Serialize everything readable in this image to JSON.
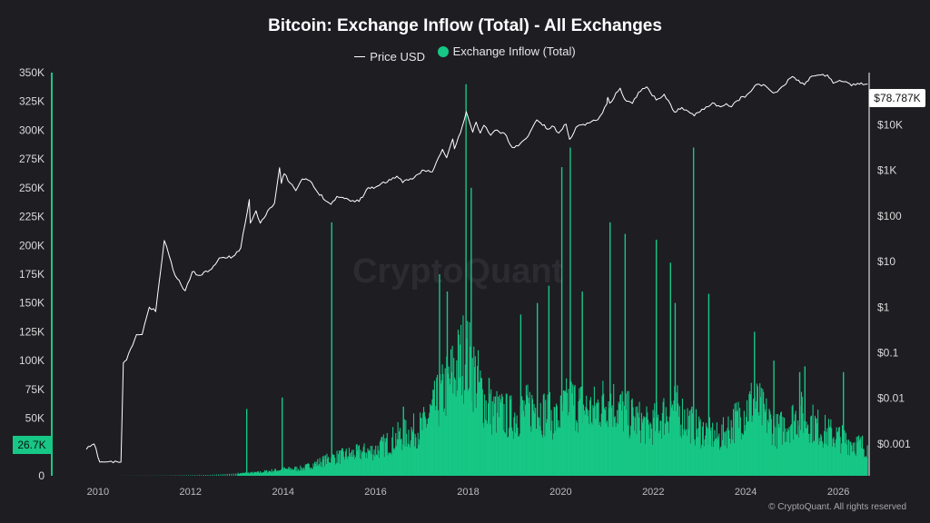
{
  "header": {
    "title": "Bitcoin: Exchange Inflow (Total) - All Exchanges",
    "legend": [
      {
        "label": "Price USD",
        "color": "#ffffff",
        "swatch": "line"
      },
      {
        "label": "Exchange Inflow (Total)",
        "color": "#17c785",
        "swatch": "dot"
      }
    ]
  },
  "watermark": "CryptoQuant",
  "footer": "© CryptoQuant. All rights reserved",
  "badges": {
    "left_current_inflow": "26.7K",
    "right_current_price": "$78.787K"
  },
  "chart_data": {
    "type": "area",
    "x_axis": {
      "ticks": [
        "2010",
        "2012",
        "2014",
        "2016",
        "2018",
        "2020",
        "2022",
        "2024",
        "2026"
      ],
      "range": [
        "2009-01-01",
        "2026-09-01"
      ]
    },
    "y_left": {
      "label": "Exchange Inflow (Total)",
      "ticks": [
        "350K",
        "325K",
        "300K",
        "275K",
        "250K",
        "225K",
        "200K",
        "175K",
        "150K",
        "125K",
        "100K",
        "75K",
        "50K",
        "25K",
        "0"
      ],
      "range": [
        0,
        350000
      ]
    },
    "y_right": {
      "label": "Price USD",
      "scale": "log",
      "ticks": [
        "$10K",
        "$1K",
        "$100",
        "$10",
        "$1",
        "$0.1",
        "$0.01",
        "$0.001"
      ],
      "range": [
        0.0002,
        140000
      ]
    },
    "series": [
      {
        "name": "Price USD",
        "axis": "right",
        "color": "#ffffff",
        "points": [
          [
            "2009-10-01",
            0.00076
          ],
          [
            "2009-12-01",
            0.001
          ],
          [
            "2010-01-15",
            0.0004
          ],
          [
            "2010-07-01",
            0.0004
          ],
          [
            "2010-07-20",
            0.06
          ],
          [
            "2010-08-15",
            0.07
          ],
          [
            "2010-11-01",
            0.25
          ],
          [
            "2010-12-15",
            0.25
          ],
          [
            "2011-02-10",
            1
          ],
          [
            "2011-04-01",
            0.8
          ],
          [
            "2011-06-08",
            29
          ],
          [
            "2011-07-15",
            14
          ],
          [
            "2011-09-01",
            5
          ],
          [
            "2011-11-20",
            2.3
          ],
          [
            "2012-01-15",
            6
          ],
          [
            "2012-03-01",
            5
          ],
          [
            "2012-06-01",
            6.5
          ],
          [
            "2012-08-15",
            12
          ],
          [
            "2012-10-01",
            12
          ],
          [
            "2012-12-01",
            13
          ],
          [
            "2013-02-01",
            20
          ],
          [
            "2013-04-09",
            230
          ],
          [
            "2013-04-17",
            70
          ],
          [
            "2013-06-01",
            130
          ],
          [
            "2013-07-05",
            70
          ],
          [
            "2013-09-01",
            130
          ],
          [
            "2013-10-25",
            190
          ],
          [
            "2013-12-04",
            1150
          ],
          [
            "2013-12-18",
            520
          ],
          [
            "2014-01-10",
            850
          ],
          [
            "2014-02-25",
            530
          ],
          [
            "2014-04-11",
            360
          ],
          [
            "2014-06-01",
            650
          ],
          [
            "2014-08-01",
            590
          ],
          [
            "2014-10-01",
            330
          ],
          [
            "2015-01-14",
            180
          ],
          [
            "2015-03-01",
            270
          ],
          [
            "2015-06-01",
            230
          ],
          [
            "2015-08-24",
            210
          ],
          [
            "2015-11-04",
            420
          ],
          [
            "2016-01-01",
            430
          ],
          [
            "2016-06-17",
            750
          ],
          [
            "2016-08-02",
            540
          ],
          [
            "2016-11-01",
            700
          ],
          [
            "2017-01-03",
            1020
          ],
          [
            "2017-03-24",
            930
          ],
          [
            "2017-06-12",
            2900
          ],
          [
            "2017-07-15",
            1900
          ],
          [
            "2017-09-01",
            4900
          ],
          [
            "2017-09-15",
            3000
          ],
          [
            "2017-11-01",
            6700
          ],
          [
            "2017-12-17",
            19500
          ],
          [
            "2018-02-06",
            6900
          ],
          [
            "2018-03-05",
            11500
          ],
          [
            "2018-04-06",
            6600
          ],
          [
            "2018-05-05",
            9800
          ],
          [
            "2018-06-28",
            5900
          ],
          [
            "2018-08-01",
            7600
          ],
          [
            "2018-10-15",
            6500
          ],
          [
            "2018-12-15",
            3200
          ],
          [
            "2019-02-01",
            3450
          ],
          [
            "2019-04-03",
            5000
          ],
          [
            "2019-06-26",
            12900
          ],
          [
            "2019-09-24",
            8000
          ],
          [
            "2019-10-26",
            9500
          ],
          [
            "2019-12-17",
            6600
          ],
          [
            "2020-02-13",
            10400
          ],
          [
            "2020-03-12",
            4800
          ],
          [
            "2020-05-01",
            8800
          ],
          [
            "2020-07-27",
            11000
          ],
          [
            "2020-10-21",
            13000
          ],
          [
            "2020-12-31",
            29000
          ],
          [
            "2021-01-07",
            40000
          ],
          [
            "2021-01-22",
            30000
          ],
          [
            "2021-04-14",
            64000
          ],
          [
            "2021-05-19",
            37000
          ],
          [
            "2021-07-20",
            29500
          ],
          [
            "2021-09-07",
            52000
          ],
          [
            "2021-11-10",
            68000
          ],
          [
            "2022-01-24",
            35000
          ],
          [
            "2022-03-28",
            47000
          ],
          [
            "2022-06-18",
            19000
          ],
          [
            "2022-08-15",
            24000
          ],
          [
            "2022-11-21",
            15800
          ],
          [
            "2023-01-20",
            22000
          ],
          [
            "2023-04-14",
            30500
          ],
          [
            "2023-06-15",
            25000
          ],
          [
            "2023-08-01",
            29200
          ],
          [
            "2023-09-11",
            25000
          ],
          [
            "2023-10-24",
            34000
          ],
          [
            "2024-01-11",
            46000
          ],
          [
            "2024-03-14",
            73000
          ],
          [
            "2024-06-07",
            71000
          ],
          [
            "2024-08-05",
            50000
          ],
          [
            "2024-09-06",
            53000
          ],
          [
            "2024-10-29",
            73000
          ],
          [
            "2024-12-17",
            106000
          ],
          [
            "2025-01-20",
            109000
          ],
          [
            "2025-04-08",
            76000
          ],
          [
            "2025-05-22",
            111000
          ],
          [
            "2025-07-14",
            122000
          ],
          [
            "2025-08-14",
            124000
          ],
          [
            "2025-10-06",
            125000
          ],
          [
            "2025-11-21",
            82000
          ],
          [
            "2026-01-10",
            95000
          ],
          [
            "2026-02-15",
            88000
          ],
          [
            "2026-04-15",
            72000
          ],
          [
            "2026-06-01",
            82000
          ],
          [
            "2026-07-15",
            76000
          ],
          [
            "2026-08-20",
            78787
          ]
        ]
      },
      {
        "name": "Exchange Inflow (Total)",
        "axis": "left",
        "color": "#17c785",
        "envelope": [
          [
            "2010-01-01",
            0
          ],
          [
            "2011-06-01",
            200
          ],
          [
            "2012-06-01",
            800
          ],
          [
            "2013-06-01",
            3000
          ],
          [
            "2014-01-01",
            6000
          ],
          [
            "2014-06-01",
            7000
          ],
          [
            "2015-01-01",
            16000
          ],
          [
            "2015-06-01",
            20000
          ],
          [
            "2016-01-01",
            24000
          ],
          [
            "2016-06-01",
            35000
          ],
          [
            "2017-01-01",
            45000
          ],
          [
            "2017-06-01",
            75000
          ],
          [
            "2017-12-01",
            115000
          ],
          [
            "2018-02-01",
            100000
          ],
          [
            "2018-06-01",
            62000
          ],
          [
            "2018-12-01",
            55000
          ],
          [
            "2019-06-01",
            65000
          ],
          [
            "2019-12-01",
            52000
          ],
          [
            "2020-03-01",
            70000
          ],
          [
            "2020-09-01",
            60000
          ],
          [
            "2021-01-01",
            72000
          ],
          [
            "2021-06-01",
            58000
          ],
          [
            "2021-12-01",
            45000
          ],
          [
            "2022-06-01",
            65000
          ],
          [
            "2022-12-01",
            45000
          ],
          [
            "2023-06-01",
            35000
          ],
          [
            "2024-03-01",
            70000
          ],
          [
            "2024-09-01",
            42000
          ],
          [
            "2025-03-01",
            58000
          ],
          [
            "2025-09-01",
            42000
          ],
          [
            "2026-03-01",
            33000
          ],
          [
            "2026-08-20",
            26700
          ]
        ],
        "spikes": [
          [
            "2013-03-15",
            58000
          ],
          [
            "2013-12-20",
            68000
          ],
          [
            "2015-01-15",
            220000
          ],
          [
            "2016-08-03",
            60000
          ],
          [
            "2017-05-15",
            175000
          ],
          [
            "2017-07-15",
            160000
          ],
          [
            "2017-12-10",
            340000
          ],
          [
            "2018-01-20",
            250000
          ],
          [
            "2018-06-10",
            85000
          ],
          [
            "2019-02-15",
            140000
          ],
          [
            "2019-06-26",
            150000
          ],
          [
            "2019-09-25",
            165000
          ],
          [
            "2020-01-05",
            268000
          ],
          [
            "2020-03-12",
            285000
          ],
          [
            "2020-06-15",
            160000
          ],
          [
            "2021-01-20",
            220000
          ],
          [
            "2021-05-19",
            210000
          ],
          [
            "2022-01-20",
            205000
          ],
          [
            "2022-05-12",
            185000
          ],
          [
            "2022-06-18",
            150000
          ],
          [
            "2022-11-10",
            285000
          ],
          [
            "2023-03-10",
            158000
          ],
          [
            "2024-03-05",
            125000
          ],
          [
            "2024-08-05",
            100000
          ],
          [
            "2025-02-25",
            90000
          ],
          [
            "2025-04-07",
            95000
          ],
          [
            "2026-02-05",
            90000
          ]
        ],
        "current": 26700
      }
    ]
  }
}
